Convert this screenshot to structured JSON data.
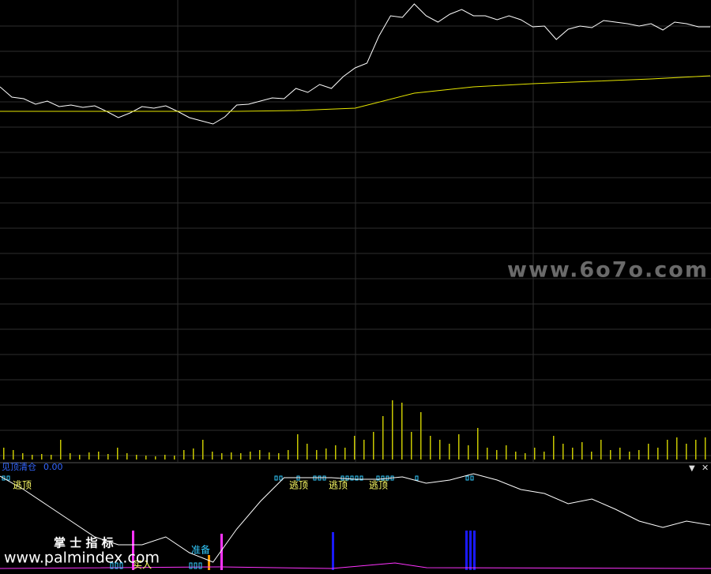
{
  "chart_data": [
    {
      "type": "line",
      "grid": true,
      "ylim": [
        0,
        585
      ],
      "series": [
        {
          "color": "#ffffff",
          "values": [
            475,
            462,
            460,
            453,
            457,
            450,
            452,
            449,
            451,
            444,
            436,
            442,
            450,
            448,
            451,
            444,
            436,
            432,
            428,
            437,
            452,
            453,
            457,
            461,
            460,
            473,
            468,
            478,
            473,
            488,
            499,
            505,
            539,
            565,
            563,
            580,
            565,
            557,
            567,
            573,
            565,
            565,
            560,
            565,
            560,
            551,
            552,
            535,
            548,
            552,
            550,
            559,
            557,
            555,
            552,
            555,
            547,
            557,
            555,
            551,
            551
          ]
        },
        {
          "color": "#e6e600",
          "values": [
            444,
            444,
            444,
            444,
            444,
            445,
            448,
            467,
            475,
            479,
            482,
            485,
            489
          ]
        }
      ]
    },
    {
      "type": "bar",
      "color": "#c8c800",
      "ylim": [
        0,
        80
      ],
      "values": [
        15,
        12,
        8,
        6,
        7,
        6,
        25,
        8,
        6,
        9,
        10,
        7,
        15,
        8,
        6,
        5,
        4,
        6,
        5,
        12,
        14,
        25,
        10,
        8,
        9,
        8,
        10,
        12,
        9,
        8,
        12,
        32,
        20,
        12,
        14,
        18,
        15,
        30,
        25,
        35,
        55,
        75,
        72,
        35,
        60,
        30,
        25,
        20,
        32,
        18,
        40,
        15,
        12,
        18,
        10,
        8,
        15,
        10,
        30,
        20,
        15,
        22,
        10,
        25,
        12,
        15,
        10,
        12,
        20,
        15,
        25,
        28,
        20,
        25,
        28
      ]
    },
    {
      "type": "line",
      "title": "见顶清仓",
      "readout": {
        "value": 0,
        "label": "0.00"
      },
      "ylim": [
        0,
        125
      ],
      "series": [
        {
          "color": "#ffffff",
          "values": [
            119,
            102,
            82,
            62,
            42,
            32,
            32,
            42,
            22,
            10,
            52,
            87,
            117,
            117,
            117,
            115,
            115,
            118,
            110,
            114,
            122,
            114,
            102,
            97,
            84,
            90,
            77,
            62,
            54,
            62,
            57
          ]
        }
      ],
      "annotations": [
        "逃顶",
        "逃顶",
        "逃顶",
        "逃顶",
        "准备",
        "买入"
      ]
    }
  ],
  "watermarks": [
    "www.6o7o.com",
    "掌 士 指 标",
    "www.palmindex.com"
  ]
}
